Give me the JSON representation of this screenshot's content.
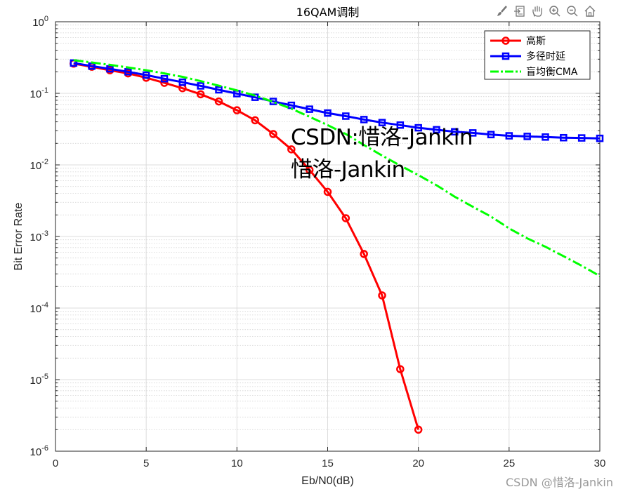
{
  "chart_data": {
    "type": "line",
    "title": "16QAM调制",
    "xlabel": "Eb/N0(dB)",
    "ylabel": "Bit Error Rate",
    "xlim": [
      0,
      30
    ],
    "ylim_log10": [
      -6,
      0
    ],
    "yscale": "log",
    "grid": true,
    "legend_position": "top-right",
    "x_ticks": [
      0,
      5,
      10,
      15,
      20,
      25,
      30
    ],
    "y_tick_exponents": [
      0,
      -1,
      -2,
      -3,
      -4,
      -5,
      -6
    ],
    "series": [
      {
        "name": "高斯",
        "color": "#ff0000",
        "marker": "circle",
        "style": "solid",
        "x": [
          1,
          2,
          3,
          4,
          5,
          6,
          7,
          8,
          9,
          10,
          11,
          12,
          13,
          14,
          15,
          16,
          17,
          18,
          19,
          20
        ],
        "y": [
          0.26,
          0.235,
          0.21,
          0.19,
          0.165,
          0.14,
          0.118,
          0.097,
          0.077,
          0.058,
          0.042,
          0.027,
          0.0165,
          0.0085,
          0.0042,
          0.0018,
          0.00057,
          0.00015,
          1.4e-05,
          2e-06
        ]
      },
      {
        "name": "多径时延",
        "color": "#0000ff",
        "marker": "square",
        "style": "solid",
        "x": [
          1,
          2,
          3,
          4,
          5,
          6,
          7,
          8,
          9,
          10,
          11,
          12,
          13,
          14,
          15,
          16,
          17,
          18,
          19,
          20,
          21,
          22,
          23,
          24,
          25,
          26,
          27,
          28,
          29,
          30
        ],
        "y": [
          0.265,
          0.24,
          0.22,
          0.2,
          0.18,
          0.16,
          0.143,
          0.127,
          0.112,
          0.099,
          0.088,
          0.077,
          0.068,
          0.06,
          0.053,
          0.048,
          0.043,
          0.039,
          0.036,
          0.033,
          0.031,
          0.029,
          0.028,
          0.0265,
          0.0255,
          0.025,
          0.0245,
          0.024,
          0.0238,
          0.0235
        ]
      },
      {
        "name": "盲均衡CMA",
        "color": "#00ff00",
        "marker": "none",
        "style": "dashdot",
        "x": [
          1,
          2,
          3,
          4,
          5,
          6,
          7,
          8,
          9,
          10,
          11,
          12,
          13,
          14,
          15,
          16,
          17,
          18,
          19,
          20,
          21,
          22,
          23,
          24,
          25,
          26,
          27,
          28,
          29,
          30
        ],
        "y": [
          0.29,
          0.27,
          0.25,
          0.23,
          0.21,
          0.19,
          0.17,
          0.148,
          0.128,
          0.11,
          0.093,
          0.076,
          0.061,
          0.047,
          0.036,
          0.027,
          0.019,
          0.0135,
          0.0098,
          0.0072,
          0.0052,
          0.0036,
          0.0026,
          0.0019,
          0.0013,
          0.00094,
          0.00072,
          0.00053,
          0.00039,
          0.00028
        ]
      }
    ]
  },
  "watermark": {
    "line1": "CSDN:惜洛-Jankin",
    "line2": "惜洛-Jankin",
    "credit": "CSDN @惜洛-Jankin"
  },
  "toolbar": {
    "icons": [
      "brush-icon",
      "export-icon",
      "pan-icon",
      "zoom-in-icon",
      "zoom-out-icon",
      "home-icon"
    ]
  }
}
